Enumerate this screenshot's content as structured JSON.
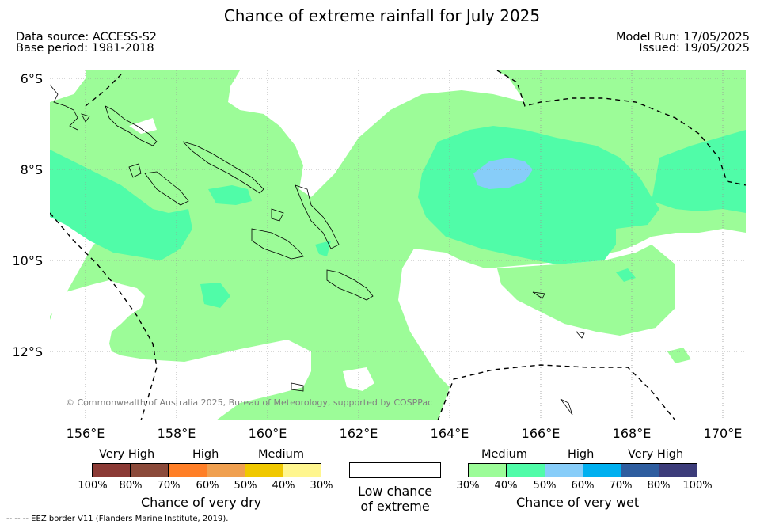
{
  "title": "Chance of extreme rainfall for July 2025",
  "data_source": "Data source: ACCESS-S2",
  "base_period": "Base period: 1981-2018",
  "model_run": "Model Run: 17/05/2025",
  "issued": "Issued: 19/05/2025",
  "lat_labels": [
    "6°S",
    "8°S",
    "10°S",
    "12°S"
  ],
  "lon_labels": [
    "156°E",
    "158°E",
    "160°E",
    "162°E",
    "164°E",
    "166°E",
    "168°E",
    "170°E"
  ],
  "copyright": "© Commonwealth of Australia 2025, Bureau of Meteorology, supported by COSPPac",
  "eez_note": "--  --  -- EEZ border V11 (Flanders Marine Institute, 2019).",
  "legend": {
    "dry": {
      "heads": [
        "Very High",
        "High",
        "Medium"
      ],
      "ticks": [
        "100%",
        "80%",
        "70%",
        "60%",
        "50%",
        "40%",
        "30%"
      ],
      "colors": [
        "#8b3a35",
        "#8b4a3a",
        "#ff7f27",
        "#f0a050",
        "#f0c800",
        "#fff68f"
      ],
      "title": "Chance of very dry"
    },
    "low": {
      "line1": "Low chance",
      "line2": "of extreme"
    },
    "wet": {
      "heads": [
        "Medium",
        "High",
        "Very High"
      ],
      "ticks": [
        "30%",
        "40%",
        "50%",
        "60%",
        "70%",
        "80%",
        "100%"
      ],
      "colors": [
        "#9cfc98",
        "#50fca8",
        "#87cdf9",
        "#00b0f0",
        "#2e5d9f",
        "#3c3c7a"
      ],
      "title": "Chance of very wet"
    }
  },
  "map_colors": {
    "medium_wet": "#9cfc98",
    "high_wet_40_50": "#50fca8",
    "high_wet_50_60": "#87cdf9",
    "low": "#ffffff"
  }
}
